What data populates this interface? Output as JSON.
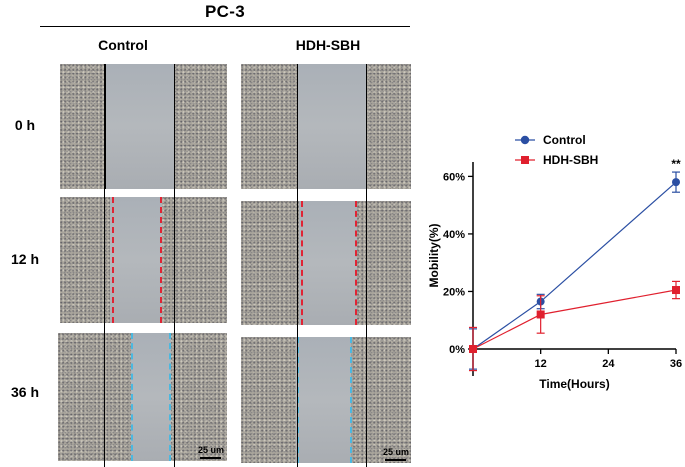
{
  "figure": {
    "title": "PC-3",
    "columns": [
      "Control",
      "HDH-SBH"
    ],
    "rows": [
      "0 h",
      "12 h",
      "36 h"
    ],
    "scale_bars": [
      "25 um",
      "25 um"
    ]
  },
  "chart_data": {
    "type": "line",
    "xlabel": "Time(Hours)",
    "ylabel": "Mobility(%)",
    "x": [
      0,
      12,
      36
    ],
    "xticks": [
      "12",
      "24",
      "36"
    ],
    "xtick_values": [
      12,
      24,
      36
    ],
    "yticks": [
      "0%",
      "20%",
      "40%",
      "60%"
    ],
    "ytick_values": [
      0,
      20,
      40,
      60
    ],
    "xlim": [
      0,
      36
    ],
    "ylim": [
      0,
      65
    ],
    "legend_position": "top",
    "grid": false,
    "series": [
      {
        "name": "Control",
        "values": [
          0,
          16.5,
          58
        ],
        "errors": [
          7,
          2.5,
          3.5
        ],
        "color": "#2b4fa3",
        "marker": "circle"
      },
      {
        "name": "HDH-SBH",
        "values": [
          0,
          12,
          20.5
        ],
        "errors": [
          7.5,
          6.5,
          3
        ],
        "color": "#e0202e",
        "marker": "square"
      }
    ],
    "annotations": [
      {
        "text": "**",
        "x": 36,
        "y": 61.5
      }
    ]
  }
}
